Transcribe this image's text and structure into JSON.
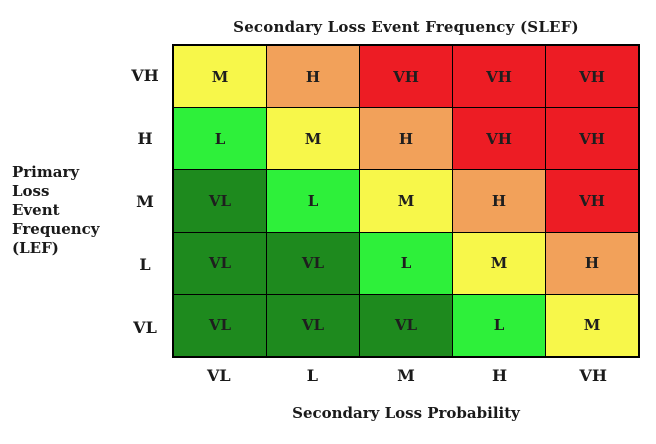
{
  "titles": {
    "top": "Secondary Loss Event Frequency (SLEF)",
    "left_lines": [
      "Primary",
      "Loss",
      "Event",
      "Frequency",
      "(LEF)"
    ],
    "bottom": "Secondary Loss Probability"
  },
  "row_labels": [
    "VH",
    "H",
    "M",
    "L",
    "VL"
  ],
  "col_labels": [
    "VL",
    "L",
    "M",
    "H",
    "VH"
  ],
  "matrix": [
    [
      "M",
      "H",
      "VH",
      "VH",
      "VH"
    ],
    [
      "L",
      "M",
      "H",
      "VH",
      "VH"
    ],
    [
      "VL",
      "L",
      "M",
      "H",
      "VH"
    ],
    [
      "VL",
      "VL",
      "L",
      "M",
      "H"
    ],
    [
      "VL",
      "VL",
      "VL",
      "L",
      "M"
    ]
  ],
  "colors": {
    "VL": "#1e8a1e",
    "L": "#2ef03a",
    "M": "#f7f74a",
    "H": "#f2a15a",
    "VH": "#ed1c24"
  }
}
